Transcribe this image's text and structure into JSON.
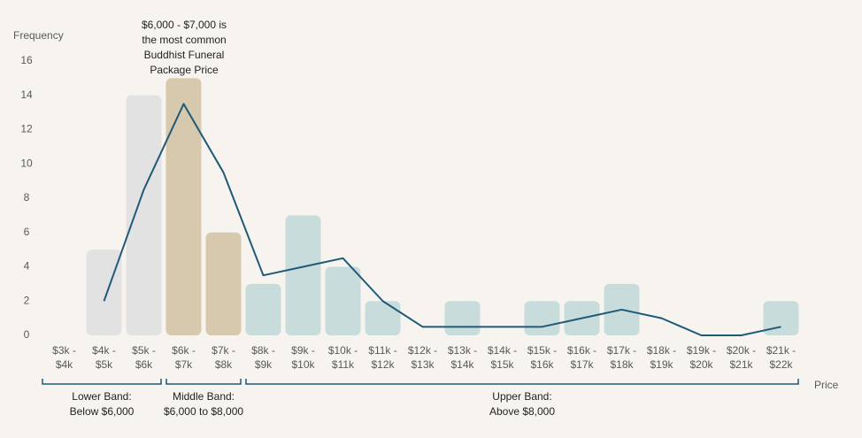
{
  "chart_data": {
    "type": "bar",
    "y_label": "Frequency",
    "x_label": "Price",
    "categories": [
      [
        "$3k -",
        "$4k"
      ],
      [
        "$4k -",
        "$5k"
      ],
      [
        "$5k -",
        "$6k"
      ],
      [
        "$6k -",
        "$7k"
      ],
      [
        "$7k -",
        "$8k"
      ],
      [
        "$8k -",
        "$9k"
      ],
      [
        "$9k -",
        "$10k"
      ],
      [
        "$10k -",
        "$11k"
      ],
      [
        "$11k -",
        "$12k"
      ],
      [
        "$12k -",
        "$13k"
      ],
      [
        "$13k -",
        "$14k"
      ],
      [
        "$14k -",
        "$15k"
      ],
      [
        "$15k -",
        "$16k"
      ],
      [
        "$16k -",
        "$17k"
      ],
      [
        "$17k -",
        "$18k"
      ],
      [
        "$18k -",
        "$19k"
      ],
      [
        "$19k -",
        "$20k"
      ],
      [
        "$20k -",
        "$21k"
      ],
      [
        "$21k -",
        "$22k"
      ]
    ],
    "values": [
      0,
      5,
      14,
      15,
      6,
      3,
      7,
      4,
      2,
      0,
      2,
      0,
      2,
      2,
      3,
      0,
      0,
      0,
      2
    ],
    "colors": [
      "#e2e2e2",
      "#e2e2e2",
      "#e2e2e2",
      "#d7c9ad",
      "#d7c9ad",
      "#c8dcdb",
      "#c8dcdb",
      "#c8dcdb",
      "#c8dcdb",
      "#c8dcdb",
      "#c8dcdb",
      "#c8dcdb",
      "#c8dcdb",
      "#c8dcdb",
      "#c8dcdb",
      "#c8dcdb",
      "#c8dcdb",
      "#c8dcdb",
      "#c8dcdb"
    ],
    "line": {
      "color": "#1f5a78",
      "values": [
        null,
        2,
        8.5,
        13.5,
        9.5,
        3.5,
        4,
        4.5,
        2,
        0.5,
        0.5,
        0.5,
        0.5,
        1,
        1.5,
        1,
        0,
        0,
        0.5
      ]
    },
    "ylim": [
      0,
      16
    ],
    "yticks": [
      0,
      2,
      4,
      6,
      8,
      10,
      12,
      14,
      16
    ],
    "annotation": {
      "lines": [
        "$6,000 - $7,000 is",
        "the most common",
        "Buddhist Funeral",
        "Package Price"
      ]
    },
    "bands": [
      {
        "lines": [
          "Lower Band:",
          "Below $6,000"
        ]
      },
      {
        "lines": [
          "Middle Band:",
          "$6,000 to $8,000"
        ]
      },
      {
        "lines": [
          "Upper Band:",
          "Above $8,000"
        ]
      }
    ]
  }
}
